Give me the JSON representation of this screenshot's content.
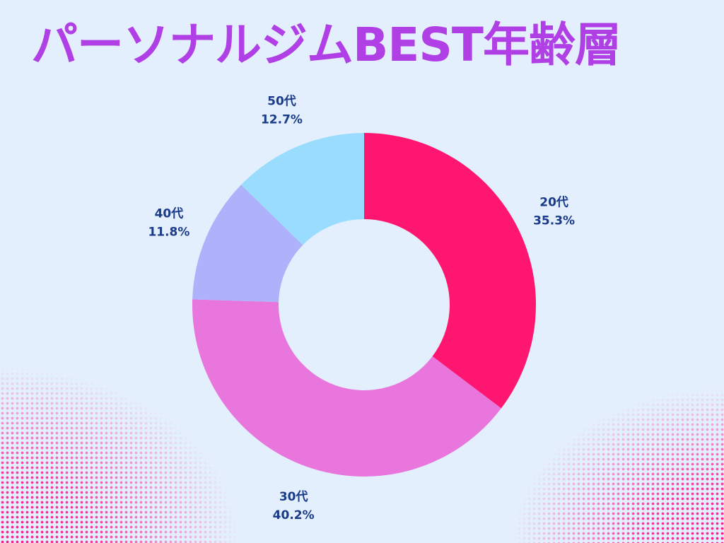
{
  "title": "パーソナルジムBEST年齢層",
  "colors": {
    "background": "#e4effd",
    "title": "#b03fe6",
    "label": "#1a3a8a",
    "halftone": "#ff1a8c"
  },
  "chart_data": {
    "type": "pie",
    "donut": true,
    "title": "パーソナルジムBEST年齢層",
    "slices": [
      {
        "label": "20代",
        "value": 35.3,
        "display": "35.3%",
        "color": "#ff1670"
      },
      {
        "label": "30代",
        "value": 40.2,
        "display": "40.2%",
        "color": "#e876dd"
      },
      {
        "label": "40代",
        "value": 11.8,
        "display": "11.8%",
        "color": "#aeb2fb"
      },
      {
        "label": "50代",
        "value": 12.7,
        "display": "12.7%",
        "color": "#9adcfd"
      }
    ],
    "start_angle_deg": 0,
    "direction": "clockwise",
    "legend": "none"
  }
}
